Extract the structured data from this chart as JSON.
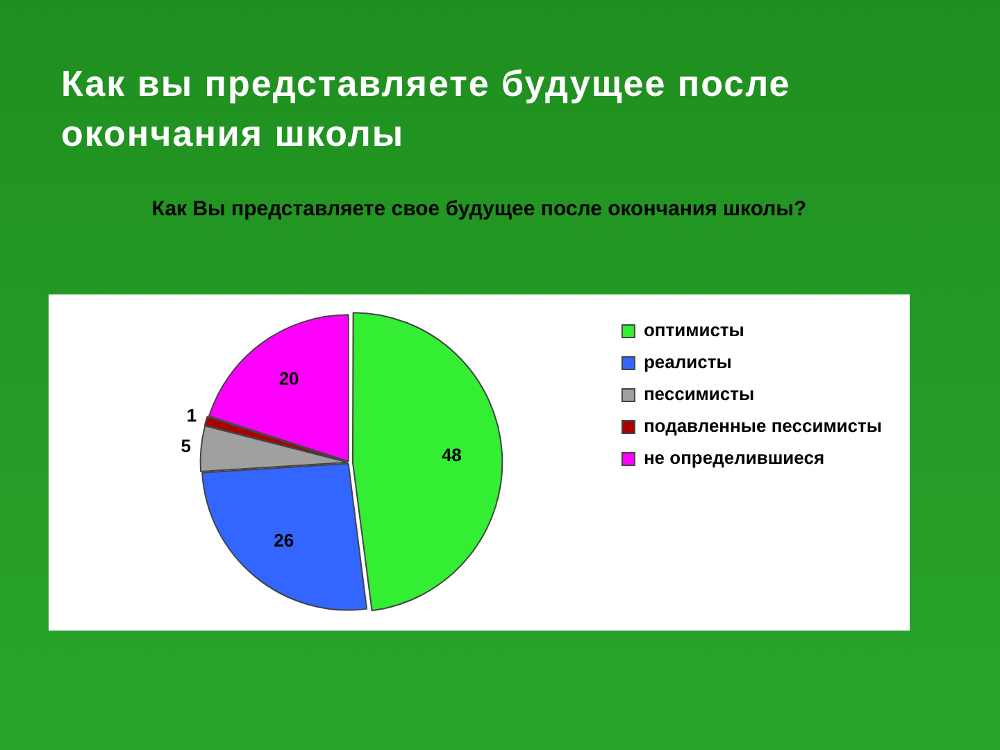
{
  "chart_data": {
    "type": "pie",
    "title": "Как вы представляете будущее после окончания школы",
    "subtitle": "Как Вы представляете свое будущее после окончания школы?",
    "categories": [
      "оптимисты",
      "реалисты",
      "пессимисты",
      "подавленные пессимисты",
      "не определившиеся"
    ],
    "values": [
      48,
      26,
      5,
      1,
      20
    ],
    "colors": [
      "#33ee33",
      "#3366ff",
      "#a0a0a0",
      "#aa0000",
      "#ff00ff"
    ],
    "data_labels": true,
    "legend": "right"
  }
}
